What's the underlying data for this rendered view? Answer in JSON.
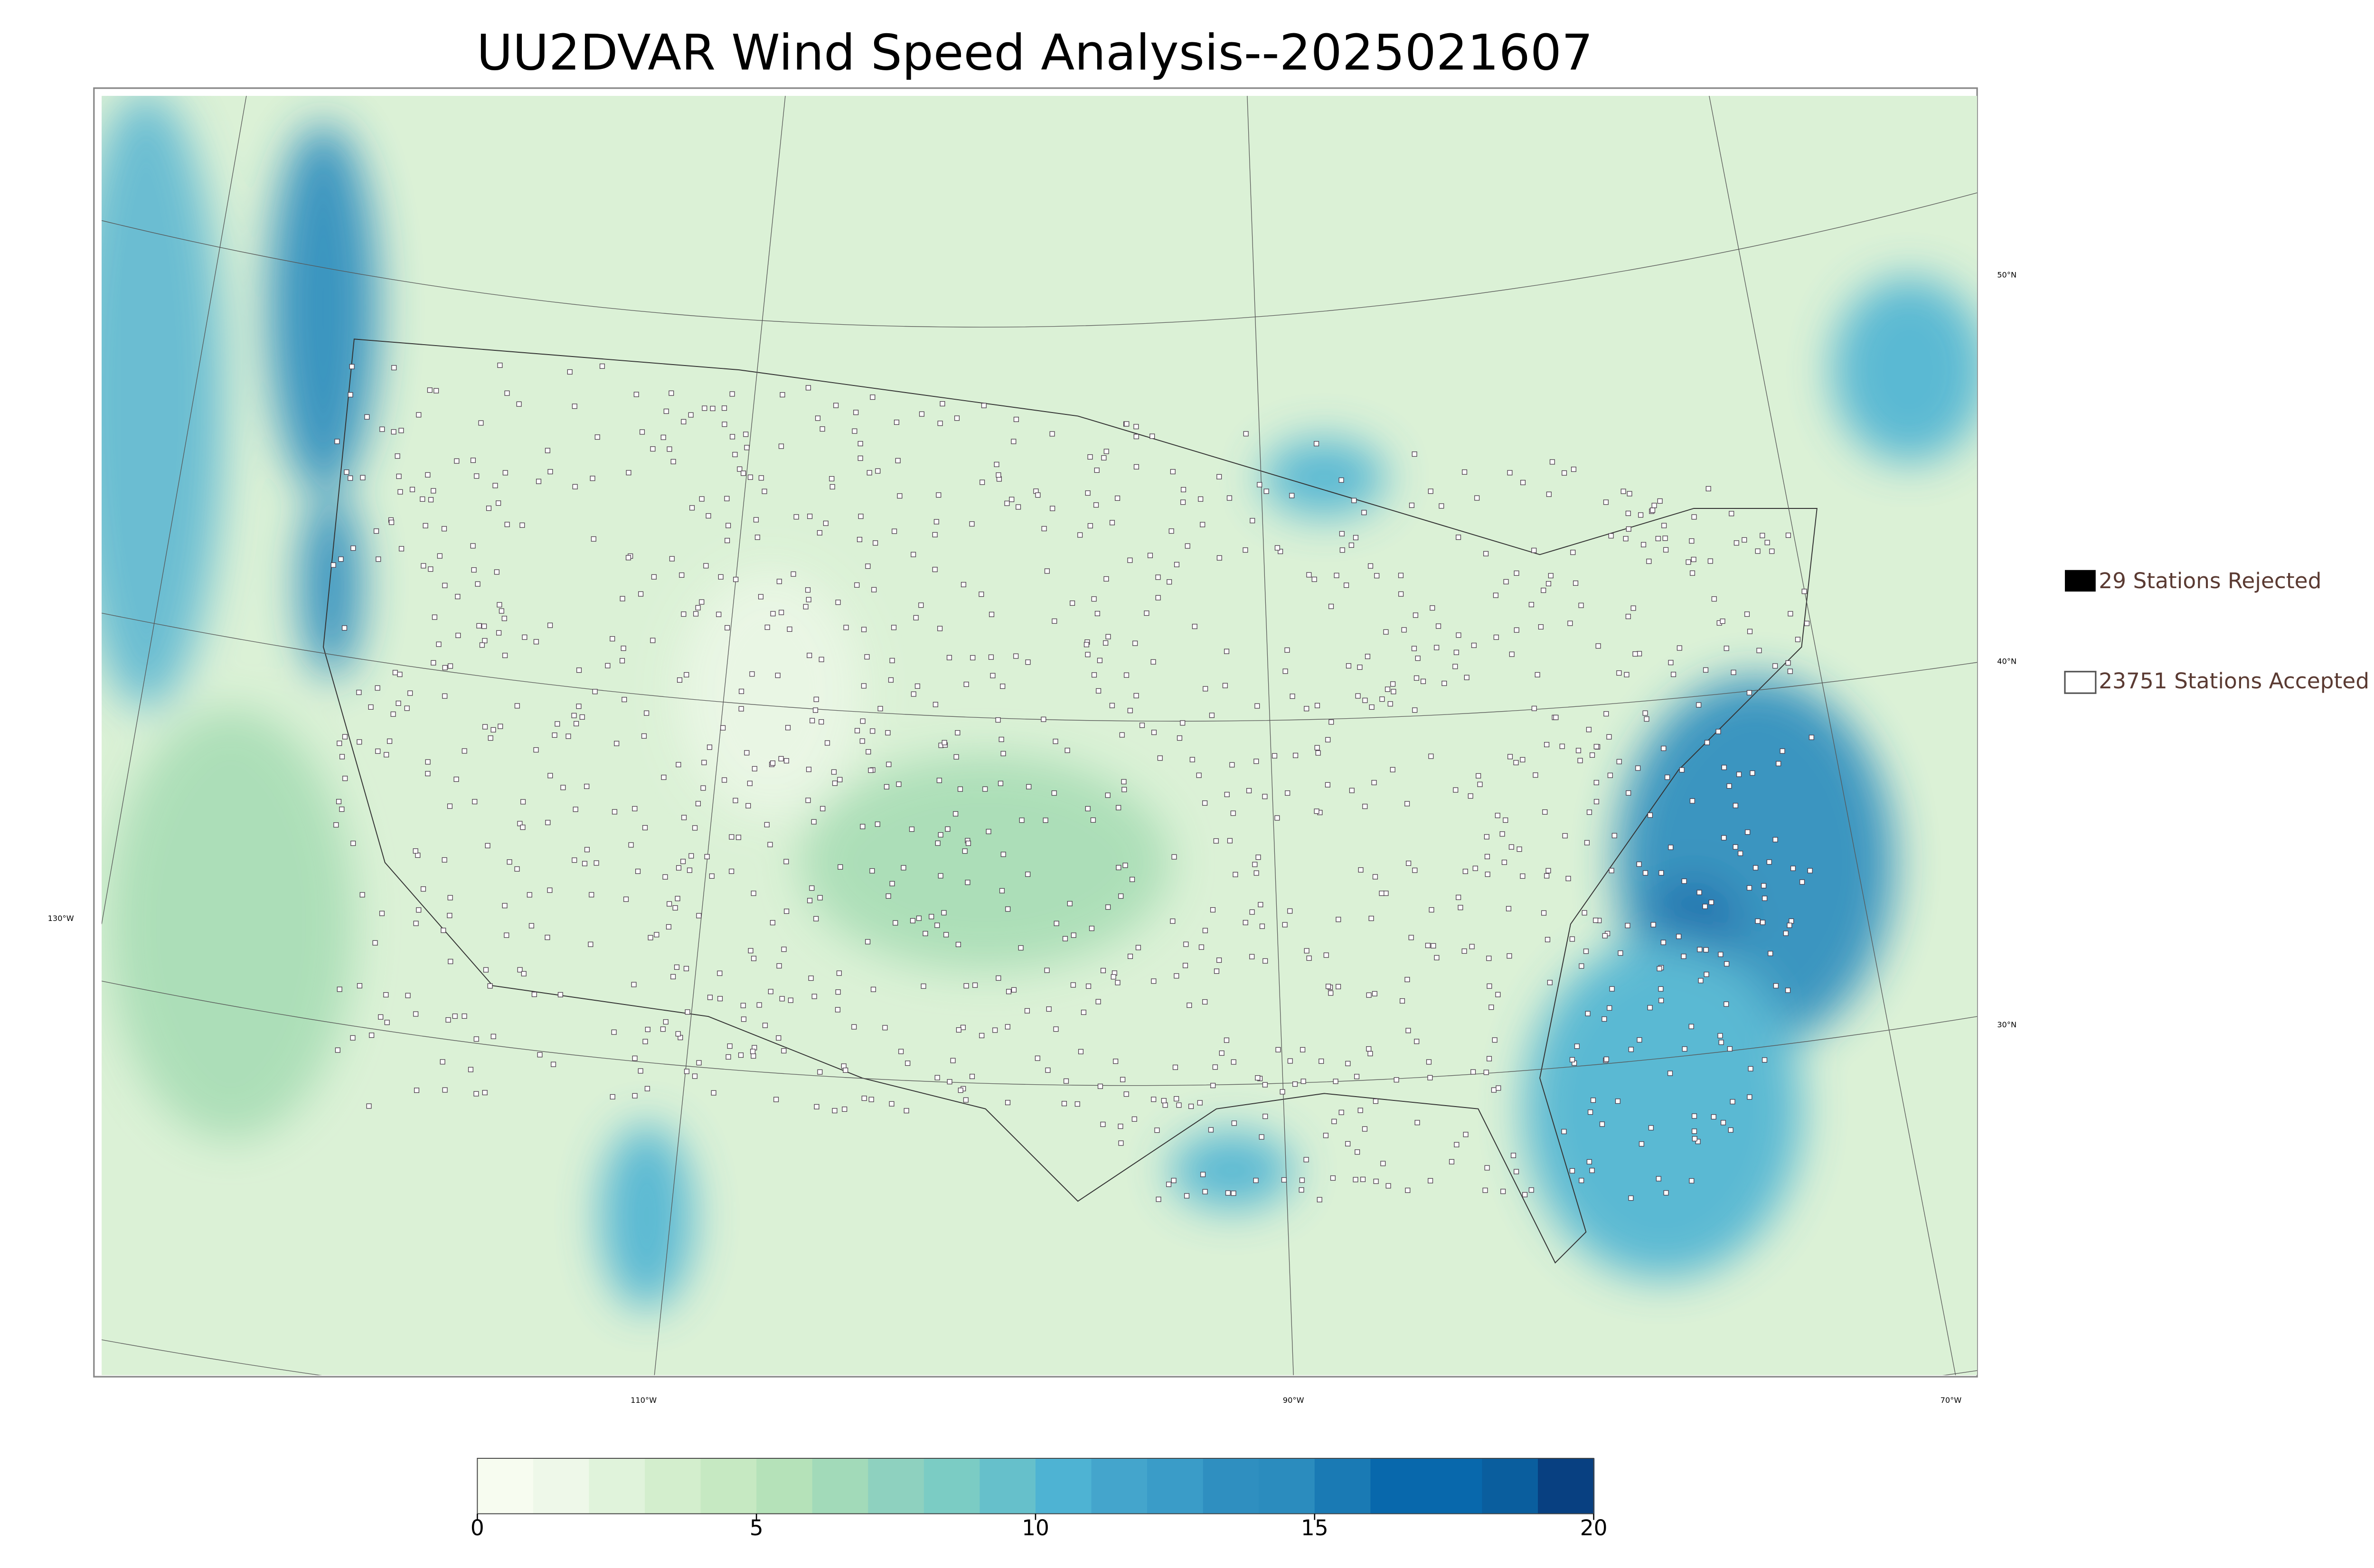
{
  "header": {
    "title": "UU2DVAR Wind Speed Analysis--2025021607"
  },
  "graticule": {
    "lat_labels": [
      "50°N",
      "40°N",
      "30°N"
    ],
    "lon_labels": [
      "130°W",
      "110°W",
      "90°W",
      "70°W"
    ]
  },
  "legend": {
    "items": [
      "29 Stations Rejected",
      "23751 Stations Accepted"
    ]
  },
  "colorbar": {
    "range": [
      0,
      20
    ],
    "ticks": [
      0,
      5,
      10,
      15,
      20
    ],
    "colors": [
      "#f7fcf0",
      "#eef8e9",
      "#e0f3db",
      "#d3eecd",
      "#c6e9c2",
      "#b5e2b9",
      "#a2dab9",
      "#8ed1bf",
      "#7bccc4",
      "#66c0cb",
      "#4eb3d3",
      "#44a5cc",
      "#3a9cc8",
      "#2f8fc0",
      "#2b8cbe",
      "#1a7ab4",
      "#0868ac",
      "#0868ac",
      "#0a5e9e",
      "#084081"
    ]
  }
}
